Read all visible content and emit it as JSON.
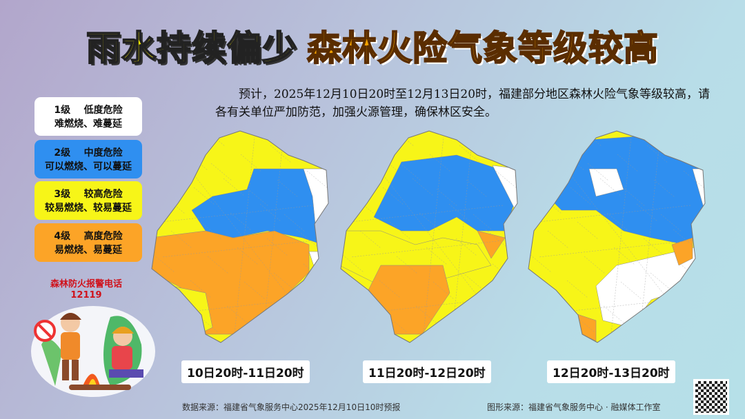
{
  "title": {
    "part1": "雨水持续偏少",
    "part2": "森林火险气象等级较高"
  },
  "intro": "预计，2025年12月10日20时至12月13日20时，福建部分地区森林火险气象等级较高，请各有关单位严加防范，加强火源管理，确保林区安全。",
  "legend": [
    {
      "level": "1级",
      "name": "低度危险",
      "desc": "难燃烧、难蔓延",
      "color": "#ffffff"
    },
    {
      "level": "2级",
      "name": "中度危险",
      "desc": "可以燃烧、可以蔓延",
      "color": "#2f8ff0"
    },
    {
      "level": "3级",
      "name": "较高危险",
      "desc": "较易燃烧、较易蔓延",
      "color": "#f7f518"
    },
    {
      "level": "4级",
      "name": "高度危险",
      "desc": "易燃烧、易蔓延",
      "color": "#fca427"
    }
  ],
  "hotline": {
    "label": "森林防火报警电话",
    "number": "12119"
  },
  "periods": [
    "10日20时-11日20时",
    "11日20时-12日20时",
    "12日20时-13日20时"
  ],
  "footer": {
    "data_source": "数据来源：福建省气象服务中心2025年12月10日10时预报",
    "graphic_source": "图形来源：福建省气象服务中心 · 融媒体工作室"
  }
}
